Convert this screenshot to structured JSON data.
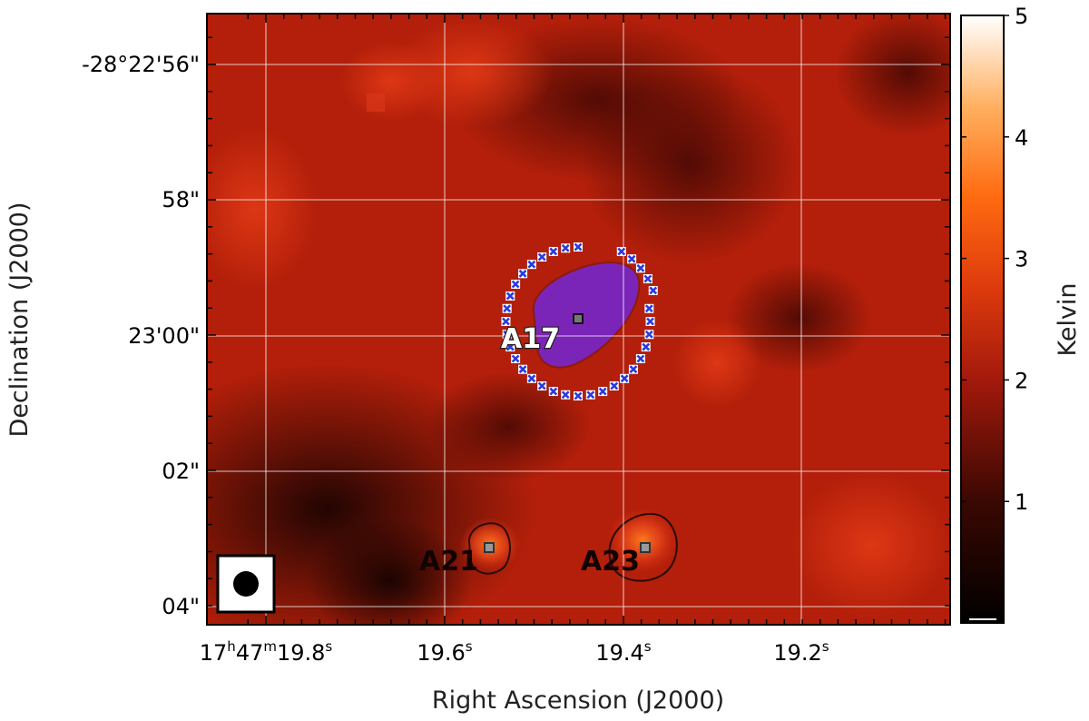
{
  "chart_data": {
    "type": "heatmap",
    "xlabel": "Right Ascension (J2000)",
    "ylabel": "Declination (J2000)",
    "x_ticks": [
      {
        "ra_s": 19.8,
        "label": "17h47m19.8s",
        "parts": [
          [
            "17",
            ""
          ],
          [
            "h",
            "sup"
          ],
          [
            "47",
            ""
          ],
          [
            "m",
            "sup"
          ],
          [
            "19.8",
            ""
          ],
          [
            "s",
            "sup"
          ]
        ]
      },
      {
        "ra_s": 19.6,
        "label": "19.6s",
        "parts": [
          [
            "19.6",
            ""
          ],
          [
            "s",
            "sup"
          ]
        ]
      },
      {
        "ra_s": 19.4,
        "label": "19.4s",
        "parts": [
          [
            "19.4",
            ""
          ],
          [
            "s",
            "sup"
          ]
        ]
      },
      {
        "ra_s": 19.2,
        "label": "19.2s",
        "parts": [
          [
            "19.2",
            ""
          ],
          [
            "s",
            "sup"
          ]
        ]
      }
    ],
    "y_ticks": [
      {
        "dec_arcsec": 56,
        "label": "-28°22'56\""
      },
      {
        "dec_arcsec": 58,
        "label": "58\""
      },
      {
        "dec_arcsec": 60,
        "label": "23'00\""
      },
      {
        "dec_arcsec": 62,
        "label": "02\""
      },
      {
        "dec_arcsec": 64,
        "label": "04\""
      }
    ],
    "ra_range_s": [
      19.847,
      19.005
    ],
    "dec_range_arcsec": [
      55.3,
      64.2
    ],
    "colorbar": {
      "label": "Kelvin",
      "range": [
        0,
        5
      ],
      "ticks": [
        1,
        2,
        3,
        4,
        5
      ],
      "colormap": "gist_heat"
    },
    "grid": true,
    "sources": [
      {
        "name": "A17",
        "ra_s": 19.44,
        "dec_arcsec": 59.75
      },
      {
        "name": "A21",
        "ra_s": 19.553,
        "dec_arcsec": 63.13
      },
      {
        "name": "A23",
        "ra_s": 19.38,
        "dec_arcsec": 63.13
      }
    ],
    "beam": {
      "shape": "circle",
      "location": "lower-left"
    },
    "colors": {
      "map_base": "#b31f0a",
      "highlight_region": "#7b25b8",
      "marker": "#2a3bdf",
      "contour": "#2a0b05"
    }
  }
}
